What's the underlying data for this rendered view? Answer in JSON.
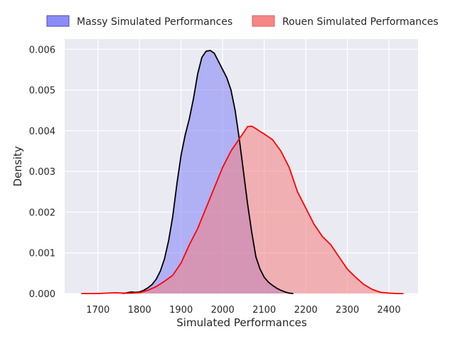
{
  "chart_data": {
    "type": "area",
    "title": "",
    "xlabel": "Simulated Performances",
    "ylabel": "Density",
    "xlim": [
      1620,
      2470
    ],
    "ylim": [
      0,
      0.00625
    ],
    "x_ticks": [
      1700,
      1800,
      1900,
      2000,
      2100,
      2200,
      2300,
      2400
    ],
    "y_ticks": [
      0.0,
      0.001,
      0.002,
      0.003,
      0.004,
      0.005,
      0.006
    ],
    "x_tick_labels": [
      "1700",
      "1800",
      "1900",
      "2000",
      "2100",
      "2200",
      "2300",
      "2400"
    ],
    "y_tick_labels": [
      "0.000",
      "0.001",
      "0.002",
      "0.003",
      "0.004",
      "0.005",
      "0.006"
    ],
    "grid": true,
    "legend_position": "top",
    "series": [
      {
        "name": "Massy Simulated Performances",
        "fill": "#7f7ff7",
        "fill_opacity": 0.55,
        "line": "#000000",
        "points": [
          [
            1760,
            0.0
          ],
          [
            1770,
            2e-05
          ],
          [
            1780,
            4e-05
          ],
          [
            1790,
            3e-05
          ],
          [
            1800,
            4e-05
          ],
          [
            1810,
            8e-05
          ],
          [
            1820,
            0.00014
          ],
          [
            1830,
            0.00022
          ],
          [
            1840,
            0.00035
          ],
          [
            1850,
            0.00055
          ],
          [
            1860,
            0.00085
          ],
          [
            1870,
            0.0013
          ],
          [
            1880,
            0.0019
          ],
          [
            1890,
            0.0027
          ],
          [
            1900,
            0.0034
          ],
          [
            1910,
            0.0039
          ],
          [
            1920,
            0.0043
          ],
          [
            1930,
            0.0048
          ],
          [
            1940,
            0.0054
          ],
          [
            1950,
            0.0058
          ],
          [
            1960,
            0.00595
          ],
          [
            1970,
            0.00597
          ],
          [
            1980,
            0.0059
          ],
          [
            1990,
            0.0057
          ],
          [
            2000,
            0.0055
          ],
          [
            2010,
            0.0053
          ],
          [
            2020,
            0.005
          ],
          [
            2030,
            0.0045
          ],
          [
            2040,
            0.0038
          ],
          [
            2050,
            0.003
          ],
          [
            2060,
            0.0022
          ],
          [
            2070,
            0.0015
          ],
          [
            2080,
            0.0009
          ],
          [
            2090,
            0.0006
          ],
          [
            2100,
            0.0004
          ],
          [
            2110,
            0.00028
          ],
          [
            2120,
            0.0002
          ],
          [
            2130,
            0.00013
          ],
          [
            2140,
            8e-05
          ],
          [
            2150,
            4e-05
          ],
          [
            2160,
            1e-05
          ],
          [
            2170,
            0.0
          ]
        ]
      },
      {
        "name": "Rouen Simulated Performances",
        "fill": "#f47f7f",
        "fill_opacity": 0.55,
        "line": "#ff0000",
        "points": [
          [
            1660,
            0.0
          ],
          [
            1700,
            0.0
          ],
          [
            1740,
            2e-05
          ],
          [
            1760,
            1e-05
          ],
          [
            1780,
            1e-05
          ],
          [
            1800,
            2e-05
          ],
          [
            1820,
            8e-05
          ],
          [
            1840,
            0.00017
          ],
          [
            1860,
            0.0003
          ],
          [
            1880,
            0.00045
          ],
          [
            1900,
            0.00075
          ],
          [
            1920,
            0.0012
          ],
          [
            1940,
            0.0016
          ],
          [
            1960,
            0.0021
          ],
          [
            1980,
            0.0026
          ],
          [
            2000,
            0.0031
          ],
          [
            2020,
            0.0035
          ],
          [
            2040,
            0.0038
          ],
          [
            2060,
            0.0041
          ],
          [
            2070,
            0.00411
          ],
          [
            2080,
            0.00405
          ],
          [
            2090,
            0.00398
          ],
          [
            2100,
            0.00392
          ],
          [
            2120,
            0.00378
          ],
          [
            2140,
            0.0035
          ],
          [
            2160,
            0.0031
          ],
          [
            2180,
            0.0025
          ],
          [
            2200,
            0.0021
          ],
          [
            2220,
            0.0017
          ],
          [
            2240,
            0.0014
          ],
          [
            2260,
            0.0012
          ],
          [
            2280,
            0.0009
          ],
          [
            2300,
            0.0006
          ],
          [
            2320,
            0.0004
          ],
          [
            2340,
            0.00022
          ],
          [
            2360,
            0.0001
          ],
          [
            2380,
            3e-05
          ],
          [
            2400,
            1e-05
          ],
          [
            2420,
            0.0
          ],
          [
            2435,
            0.0
          ]
        ]
      }
    ]
  }
}
